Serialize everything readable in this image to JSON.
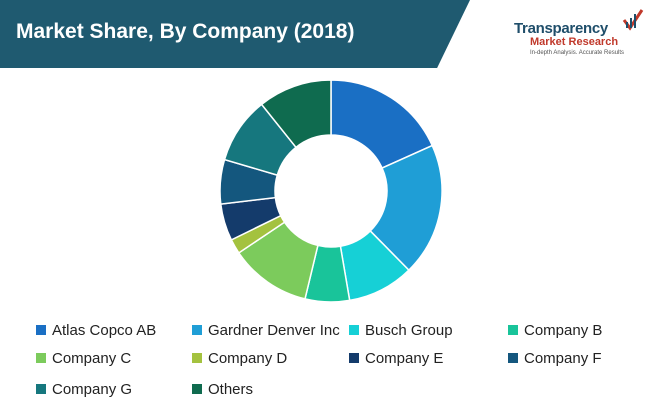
{
  "header": {
    "title": "Market Share, By Company (2018)"
  },
  "logo": {
    "line1": "Transparency",
    "line2": "Market Research",
    "line3": "In-depth Analysis. Accurate Results",
    "icon": "checkmark-chart-icon"
  },
  "chart_data": {
    "type": "pie",
    "variant": "donut",
    "title": "Market Share, By Company (2018)",
    "unit": "%",
    "legend_position": "bottom",
    "categories": [
      "Atlas Copco AB",
      "Gardner Denver Inc",
      "Busch Group",
      "Company B",
      "Company C",
      "Company D",
      "Company E",
      "Company F",
      "Company G",
      "Others"
    ],
    "values": [
      17,
      18,
      9,
      6,
      11,
      2,
      5,
      6,
      9,
      10
    ],
    "colors": [
      "#1a6fc4",
      "#1f9ed6",
      "#16d0d6",
      "#19c49a",
      "#7ccb5c",
      "#a4c23f",
      "#143b6b",
      "#14577e",
      "#16777e",
      "#0f6b4f"
    ]
  }
}
